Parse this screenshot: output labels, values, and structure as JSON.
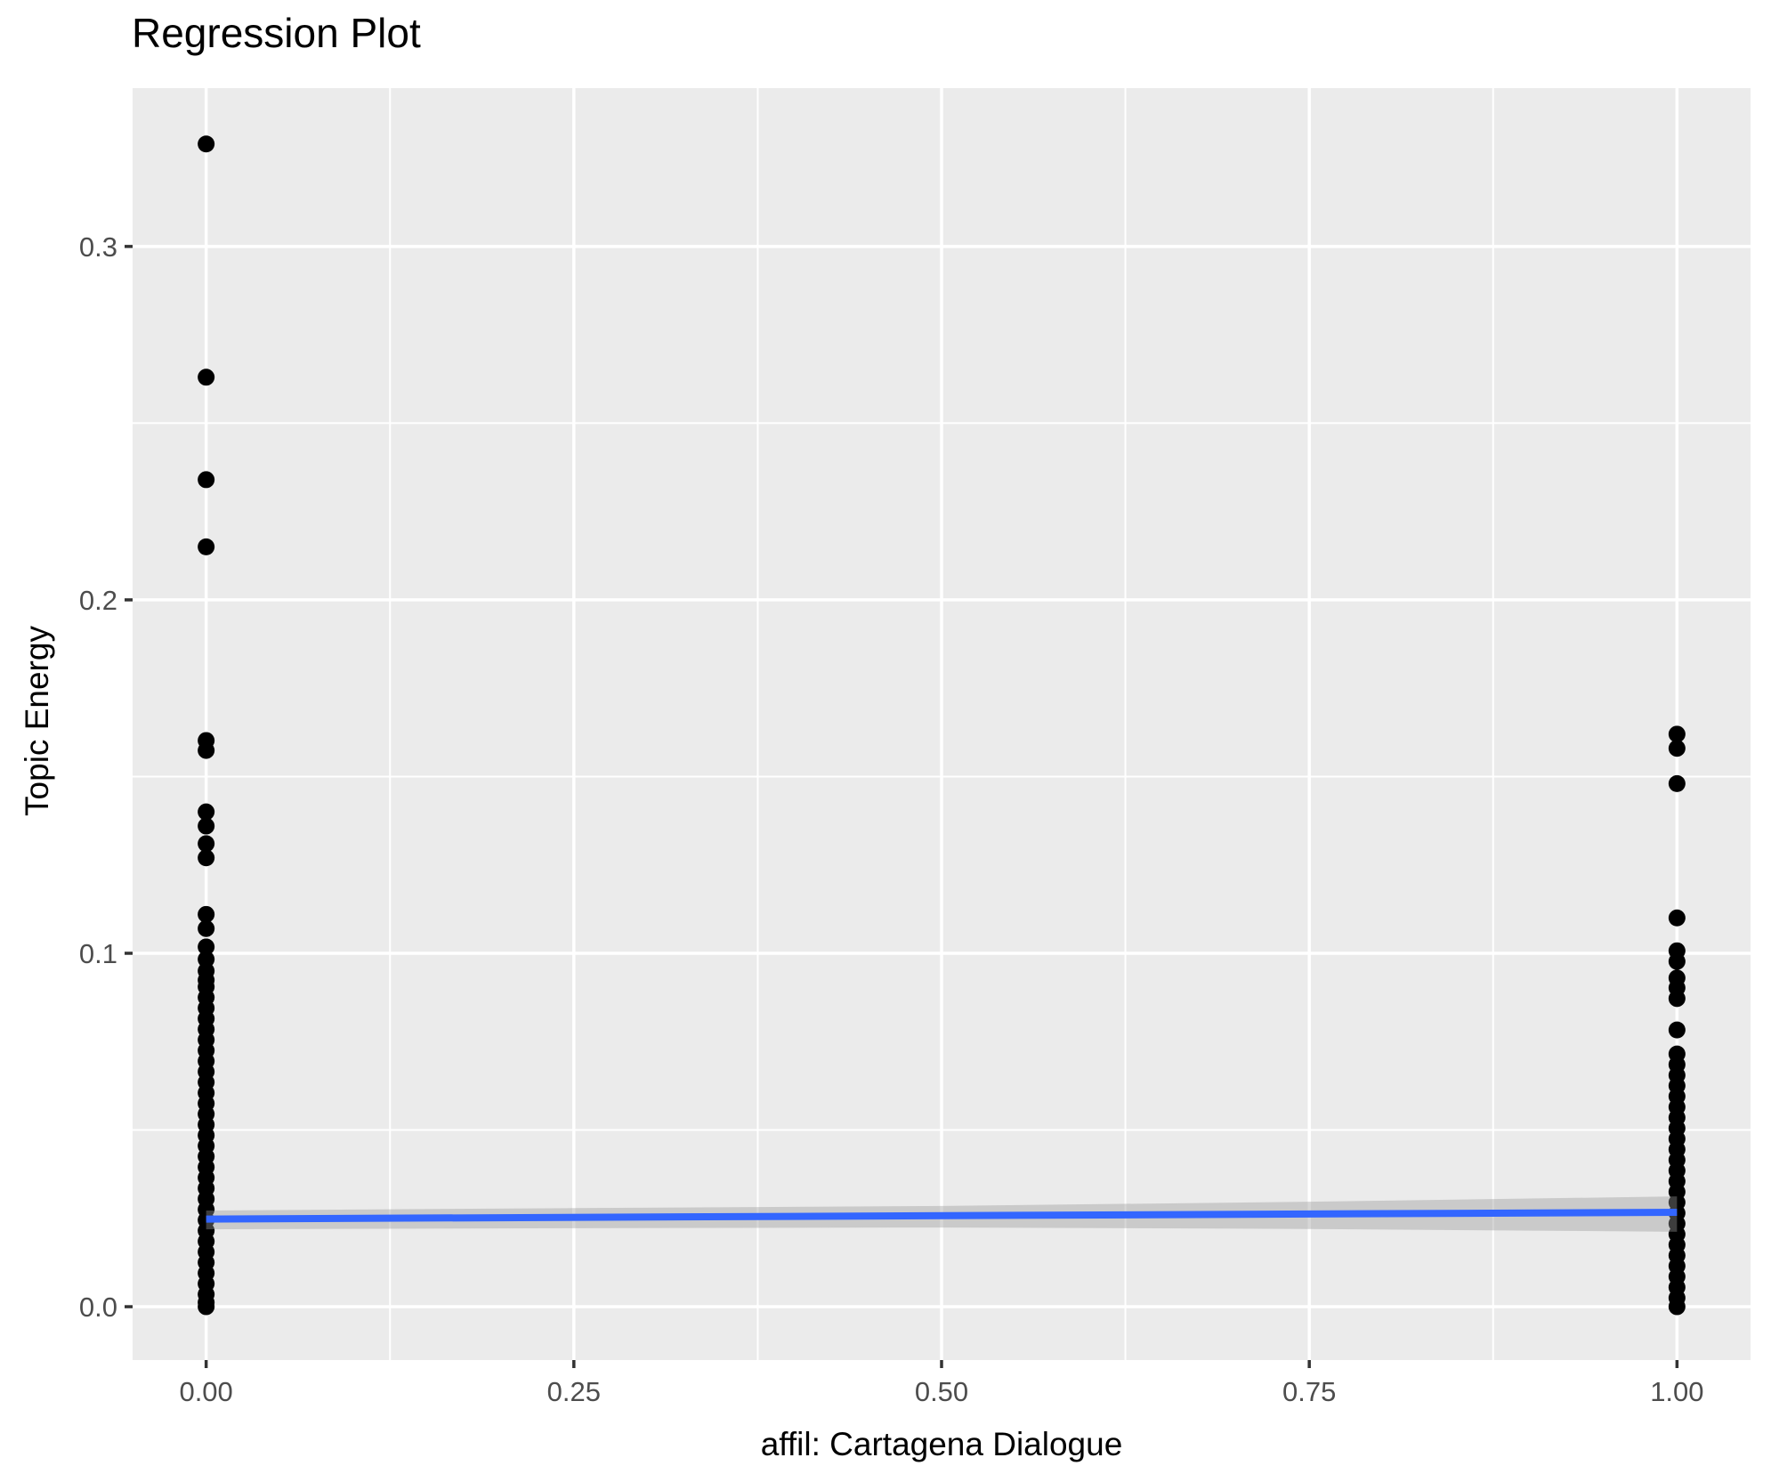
{
  "chart_data": {
    "type": "scatter",
    "title": "Regression Plot",
    "xlabel": "affil: Cartagena Dialogue",
    "ylabel": "Topic Energy",
    "xlim": [
      -0.05,
      1.05
    ],
    "ylim": [
      -0.0151,
      0.3448
    ],
    "grid": "on",
    "legend": "none",
    "x_ticks": {
      "values": [
        0,
        0.25,
        0.5,
        0.75,
        1.0
      ],
      "labels": [
        "0.00",
        "0.25",
        "0.50",
        "0.75",
        "1.00"
      ]
    },
    "y_ticks": {
      "values": [
        0,
        0.1,
        0.2,
        0.3
      ],
      "labels": [
        "0.0",
        "0.1",
        "0.2",
        "0.3"
      ]
    },
    "x_minor": [
      0.125,
      0.375,
      0.625,
      0.875
    ],
    "y_minor": [
      0.05,
      0.15,
      0.25,
      0.35
    ],
    "series": [
      {
        "name": "affil = 0",
        "x": 0,
        "values": [
          0.329,
          0.263,
          0.234,
          0.215,
          0.1602,
          0.1574,
          0.14,
          0.136,
          0.131,
          0.127,
          0.111,
          0.107,
          0.1018,
          0.0983,
          0.095,
          0.0924,
          0.0905,
          0.0875,
          0.0845,
          0.0815,
          0.0785,
          0.0755,
          0.0725,
          0.0695,
          0.0665,
          0.0635,
          0.0605,
          0.0575,
          0.0545,
          0.0515,
          0.0485,
          0.0455,
          0.0425,
          0.0395,
          0.0365,
          0.0335,
          0.0305,
          0.0275,
          0.0245,
          0.0215,
          0.0185,
          0.0155,
          0.0125,
          0.0095,
          0.0065,
          0.0035,
          0.0012,
          0.0
        ]
      },
      {
        "name": "affil = 1",
        "x": 1,
        "values": [
          0.162,
          0.158,
          0.148,
          0.11,
          0.1007,
          0.0977,
          0.093,
          0.0902,
          0.0872,
          0.0783,
          0.0715,
          0.0685,
          0.0655,
          0.0625,
          0.0595,
          0.0565,
          0.0535,
          0.0505,
          0.0475,
          0.0445,
          0.0415,
          0.0385,
          0.0355,
          0.0325,
          0.0295,
          0.0265,
          0.0235,
          0.0205,
          0.0175,
          0.0145,
          0.0115,
          0.0085,
          0.0055,
          0.0025,
          0.0
        ]
      }
    ],
    "regression_line": {
      "x": [
        0,
        1
      ],
      "y": [
        0.0248,
        0.0267
      ]
    },
    "ci_band": {
      "x": [
        0,
        0.25,
        0.5,
        0.75,
        1
      ],
      "top": [
        0.0272,
        0.0279,
        0.0285,
        0.0297,
        0.0312
      ],
      "bottom": [
        0.0219,
        0.0222,
        0.0224,
        0.022,
        0.0212
      ]
    },
    "colors": {
      "point": "#000000",
      "smooth_line": "#3366FF",
      "ci_fill": "#999999",
      "ci_alpha": 0.4,
      "panel_bg": "#EBEBEB",
      "grid": "#FFFFFF",
      "tick_label": "#4D4D4D",
      "tick_mark": "#333333",
      "text": "#000000"
    }
  }
}
